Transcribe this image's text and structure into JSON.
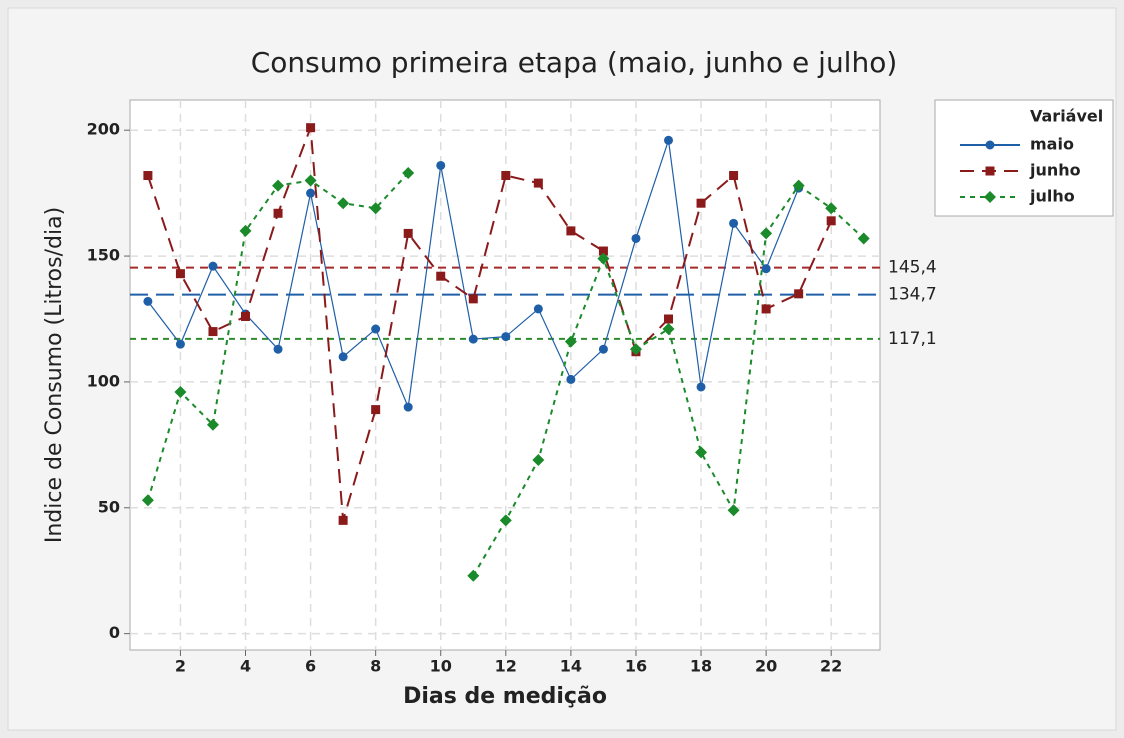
{
  "chart_data": {
    "type": "line",
    "title": "Consumo primeira etapa (maio, junho e julho)",
    "x_label": "Dias de medição",
    "y_label": "Indice de Consumo (Litros/dia)",
    "legend_title": "Variável",
    "legend_position": "right",
    "grid": true,
    "x": [
      1,
      2,
      3,
      4,
      5,
      6,
      7,
      8,
      9,
      10,
      11,
      12,
      13,
      14,
      15,
      16,
      17,
      18,
      19,
      20,
      21,
      22,
      23
    ],
    "xlim": [
      0.45,
      23.5
    ],
    "xticks": [
      2,
      4,
      6,
      8,
      10,
      12,
      14,
      16,
      18,
      20,
      22
    ],
    "ylim": [
      -6.5,
      212
    ],
    "yticks": [
      0,
      50,
      100,
      150,
      200
    ],
    "series": [
      {
        "name": "maio",
        "color": "#1f5fa8",
        "marker": "circle",
        "dash": "none",
        "values": [
          132,
          115,
          146,
          127,
          113,
          175,
          110,
          121,
          90,
          186,
          117,
          118,
          129,
          101,
          113,
          157,
          196,
          98,
          163,
          145,
          177,
          null,
          null
        ]
      },
      {
        "name": "junho",
        "color": "#8b1a1a",
        "marker": "square",
        "dash": "14 8",
        "values": [
          182,
          143,
          120,
          126,
          167,
          201,
          45,
          89,
          159,
          142,
          133,
          182,
          179,
          160,
          152,
          112,
          125,
          171,
          182,
          129,
          135,
          164,
          null
        ]
      },
      {
        "name": "julho",
        "color": "#1a8a2a",
        "marker": "diamond",
        "dash": "5 5",
        "values": [
          53,
          96,
          83,
          160,
          178,
          180,
          171,
          169,
          183,
          null,
          23,
          45,
          69,
          116,
          149,
          113,
          121,
          72,
          49,
          159,
          178,
          169,
          157
        ]
      }
    ],
    "reference_lines": [
      {
        "value": 145.4,
        "label": "145,4",
        "color": "#a52a2a",
        "dash": "8 6"
      },
      {
        "value": 134.7,
        "label": "134,7",
        "color": "#1f5fa8",
        "dash": "18 8"
      },
      {
        "value": 117.1,
        "label": "117,1",
        "color": "#2e8b2e",
        "dash": "6 5"
      }
    ]
  }
}
